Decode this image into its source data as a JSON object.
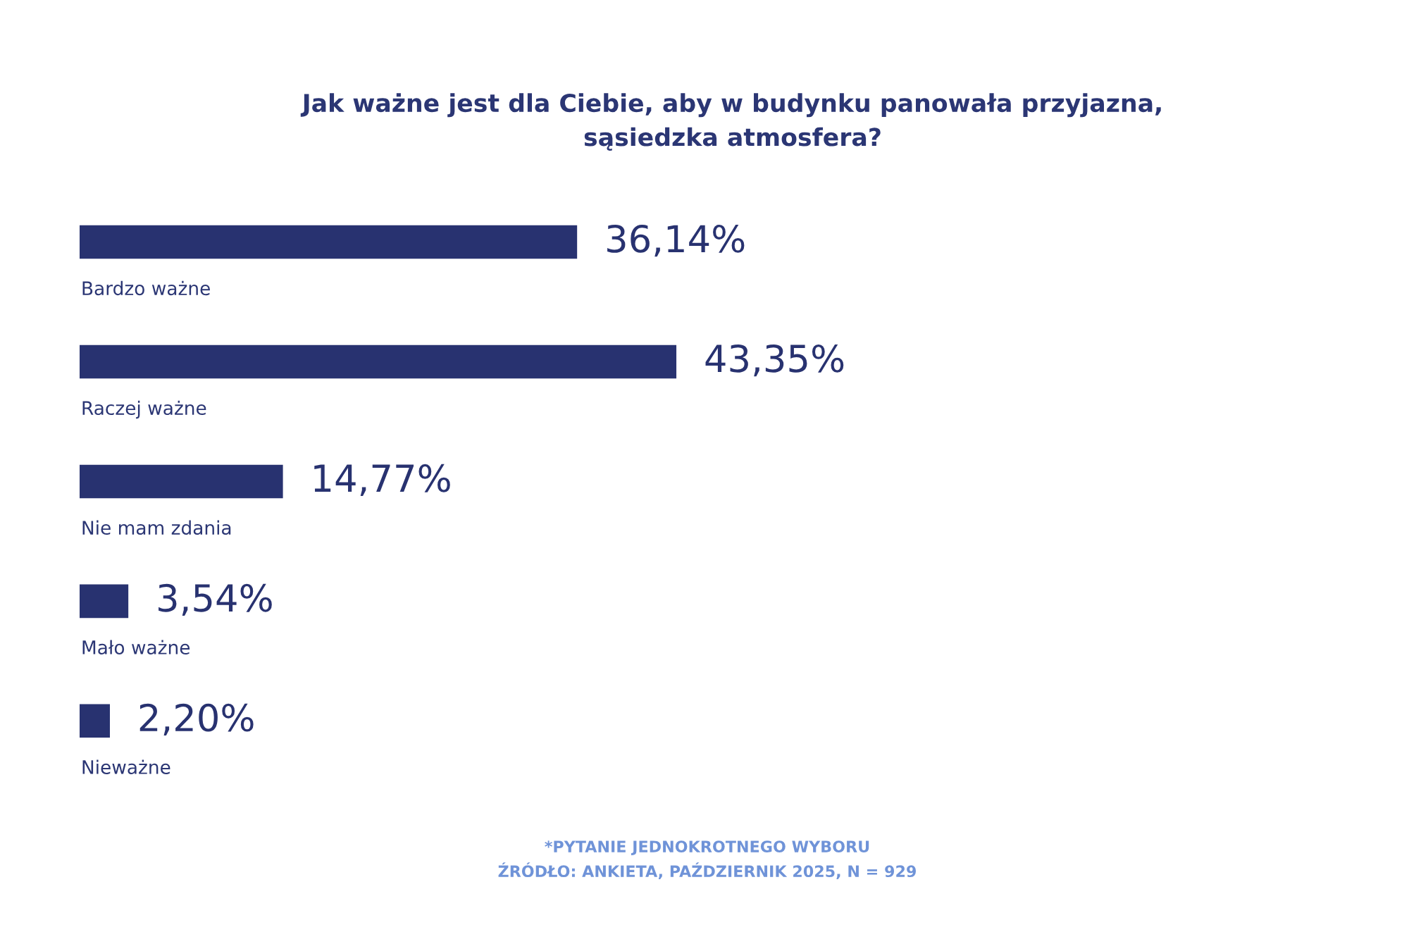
{
  "chart_data": {
    "type": "bar",
    "orientation": "horizontal",
    "title": "Jak ważne jest dla Ciebie, aby w budynku panowała przyjazna,\nsąsiedzka atmosfera?",
    "categories": [
      "Bardzo ważne",
      "Raczej ważne",
      "Nie mam zdania",
      "Mało ważne",
      "Nieważne"
    ],
    "values": [
      36.14,
      43.35,
      14.77,
      3.54,
      2.2
    ],
    "value_labels": [
      "36,14%",
      "43,35%",
      "14,77%",
      "3,54%",
      "2,20%"
    ],
    "color": "#283270",
    "annotations": [
      "*PYTANIE JEDNOKROTNEGO WYBORU\nŹRÓDŁO: ANKIETA, PAŹDZIERNIK 2025, N = 929"
    ]
  }
}
